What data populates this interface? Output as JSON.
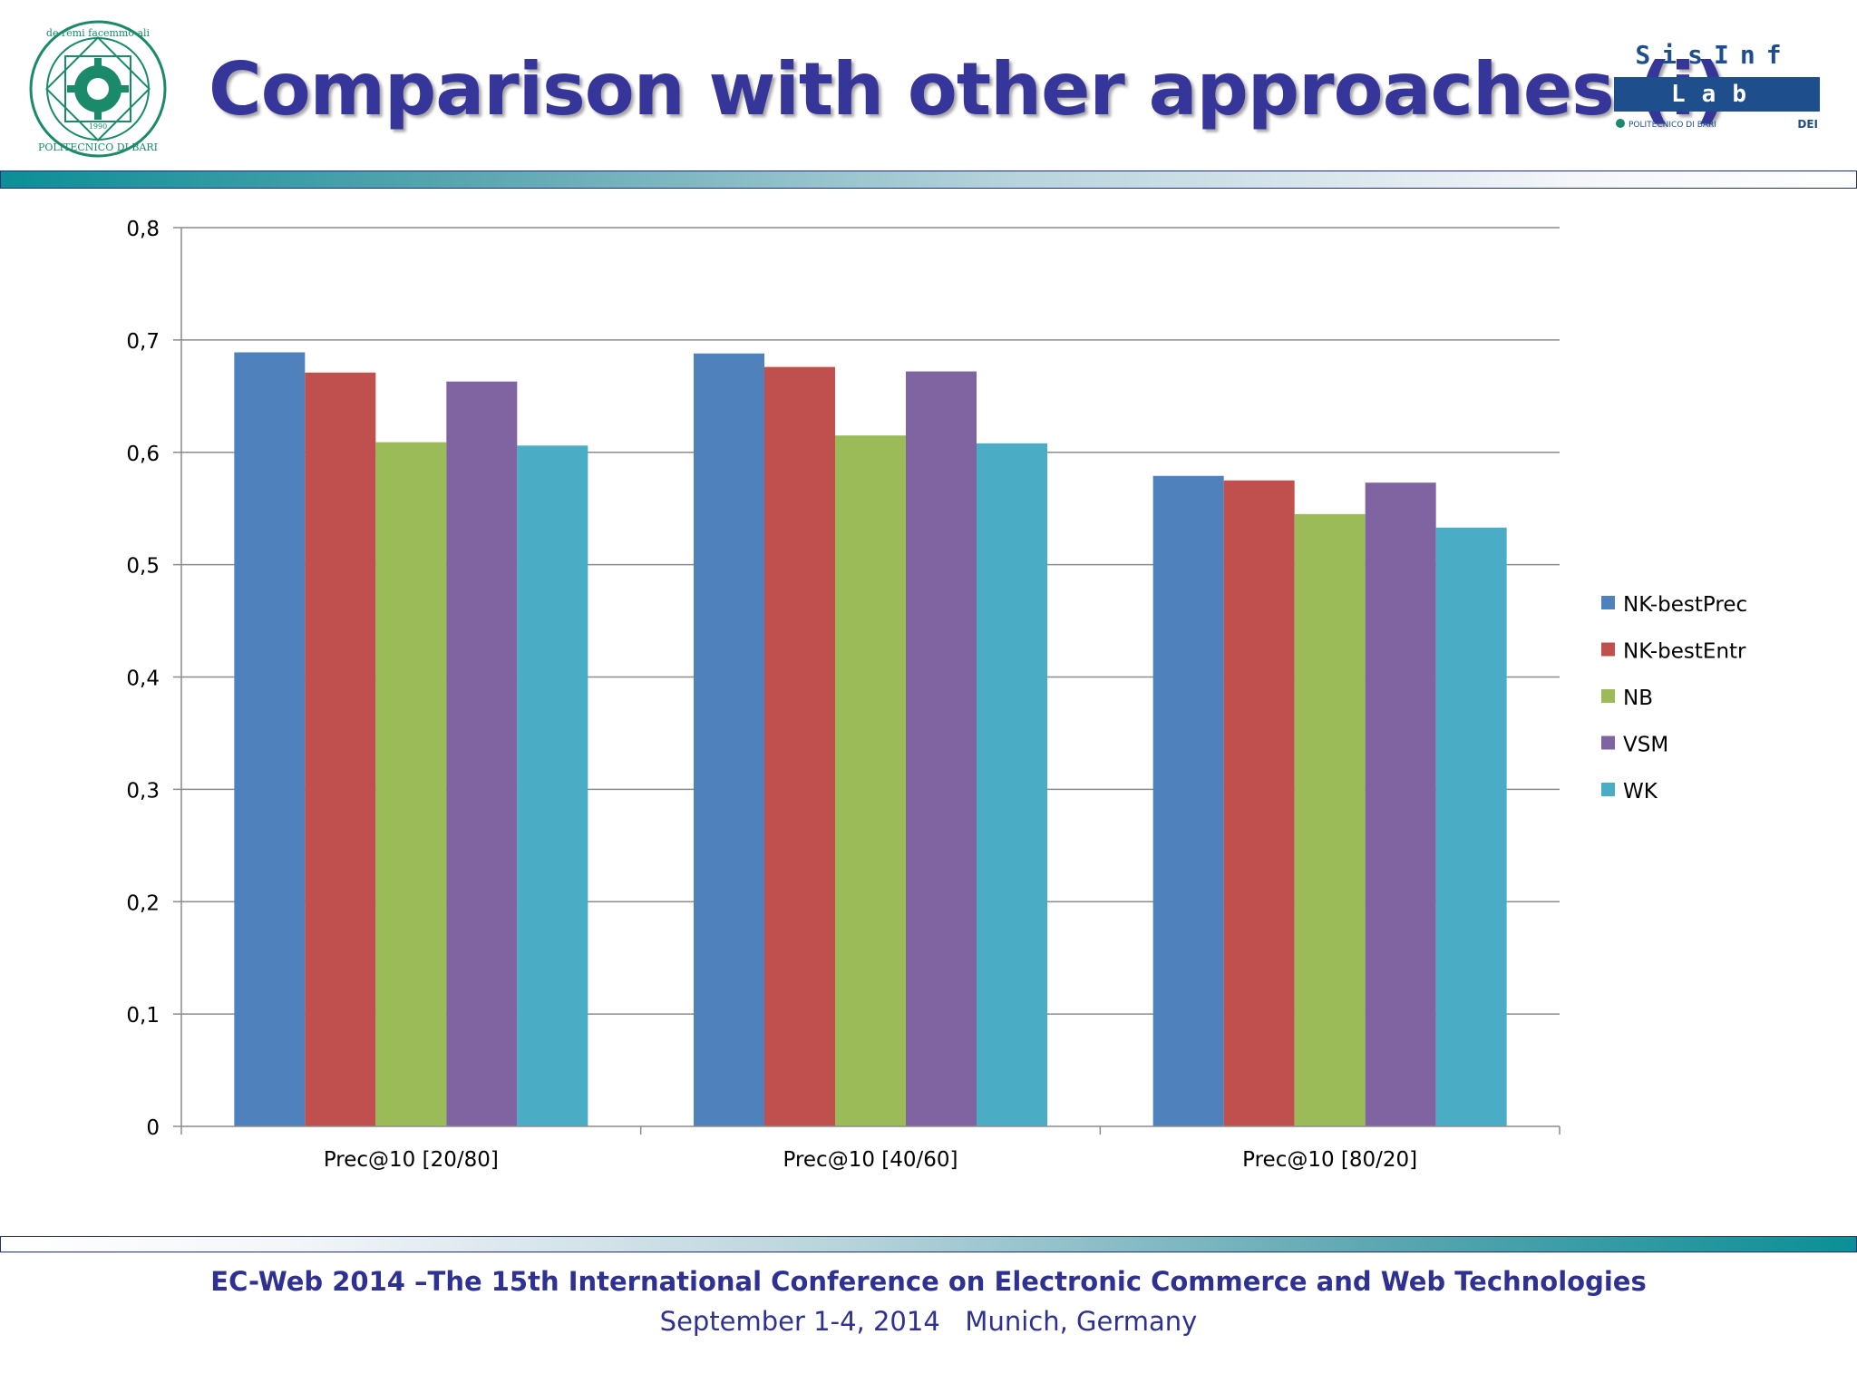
{
  "slide": {
    "title": "Comparison with other approaches (i)",
    "logo_left_motto": "de remi facemmo ali",
    "logo_left_name": "POLITECNICO DI BARI",
    "logo_left_year": "1990",
    "logo_right_line1": "SisInf",
    "logo_right_line2": "Lab",
    "logo_right_sub": "POLITECNICO DI BARI",
    "logo_right_dept": "DEI"
  },
  "footer": {
    "line1": "EC-Web 2014 –The 15th International Conference on Electronic Commerce and Web Technologies",
    "line2": "September 1-4, 2014   Munich, Germany"
  },
  "chart_data": {
    "type": "bar",
    "categories": [
      "Prec@10 [20/80]",
      "Prec@10 [40/60]",
      "Prec@10 [80/20]"
    ],
    "series": [
      {
        "name": "NK-bestPrec",
        "color": "#4f81bd",
        "values": [
          0.689,
          0.688,
          0.579
        ]
      },
      {
        "name": "NK-bestEntr",
        "color": "#c0504d",
        "values": [
          0.671,
          0.676,
          0.575
        ]
      },
      {
        "name": "NB",
        "color": "#9bbb59",
        "values": [
          0.609,
          0.615,
          0.545
        ]
      },
      {
        "name": "VSM",
        "color": "#8064a2",
        "values": [
          0.663,
          0.672,
          0.573
        ]
      },
      {
        "name": "WK",
        "color": "#4bacc6",
        "values": [
          0.606,
          0.608,
          0.533
        ]
      }
    ],
    "ylim": [
      0,
      0.8
    ],
    "yticks": [
      0,
      0.1,
      0.2,
      0.3,
      0.4,
      0.5,
      0.6,
      0.7,
      0.8
    ],
    "ytick_labels": [
      "0",
      "0,1",
      "0,2",
      "0,3",
      "0,4",
      "0,5",
      "0,6",
      "0,7",
      "0,8"
    ],
    "grid": true,
    "legend": "right"
  }
}
